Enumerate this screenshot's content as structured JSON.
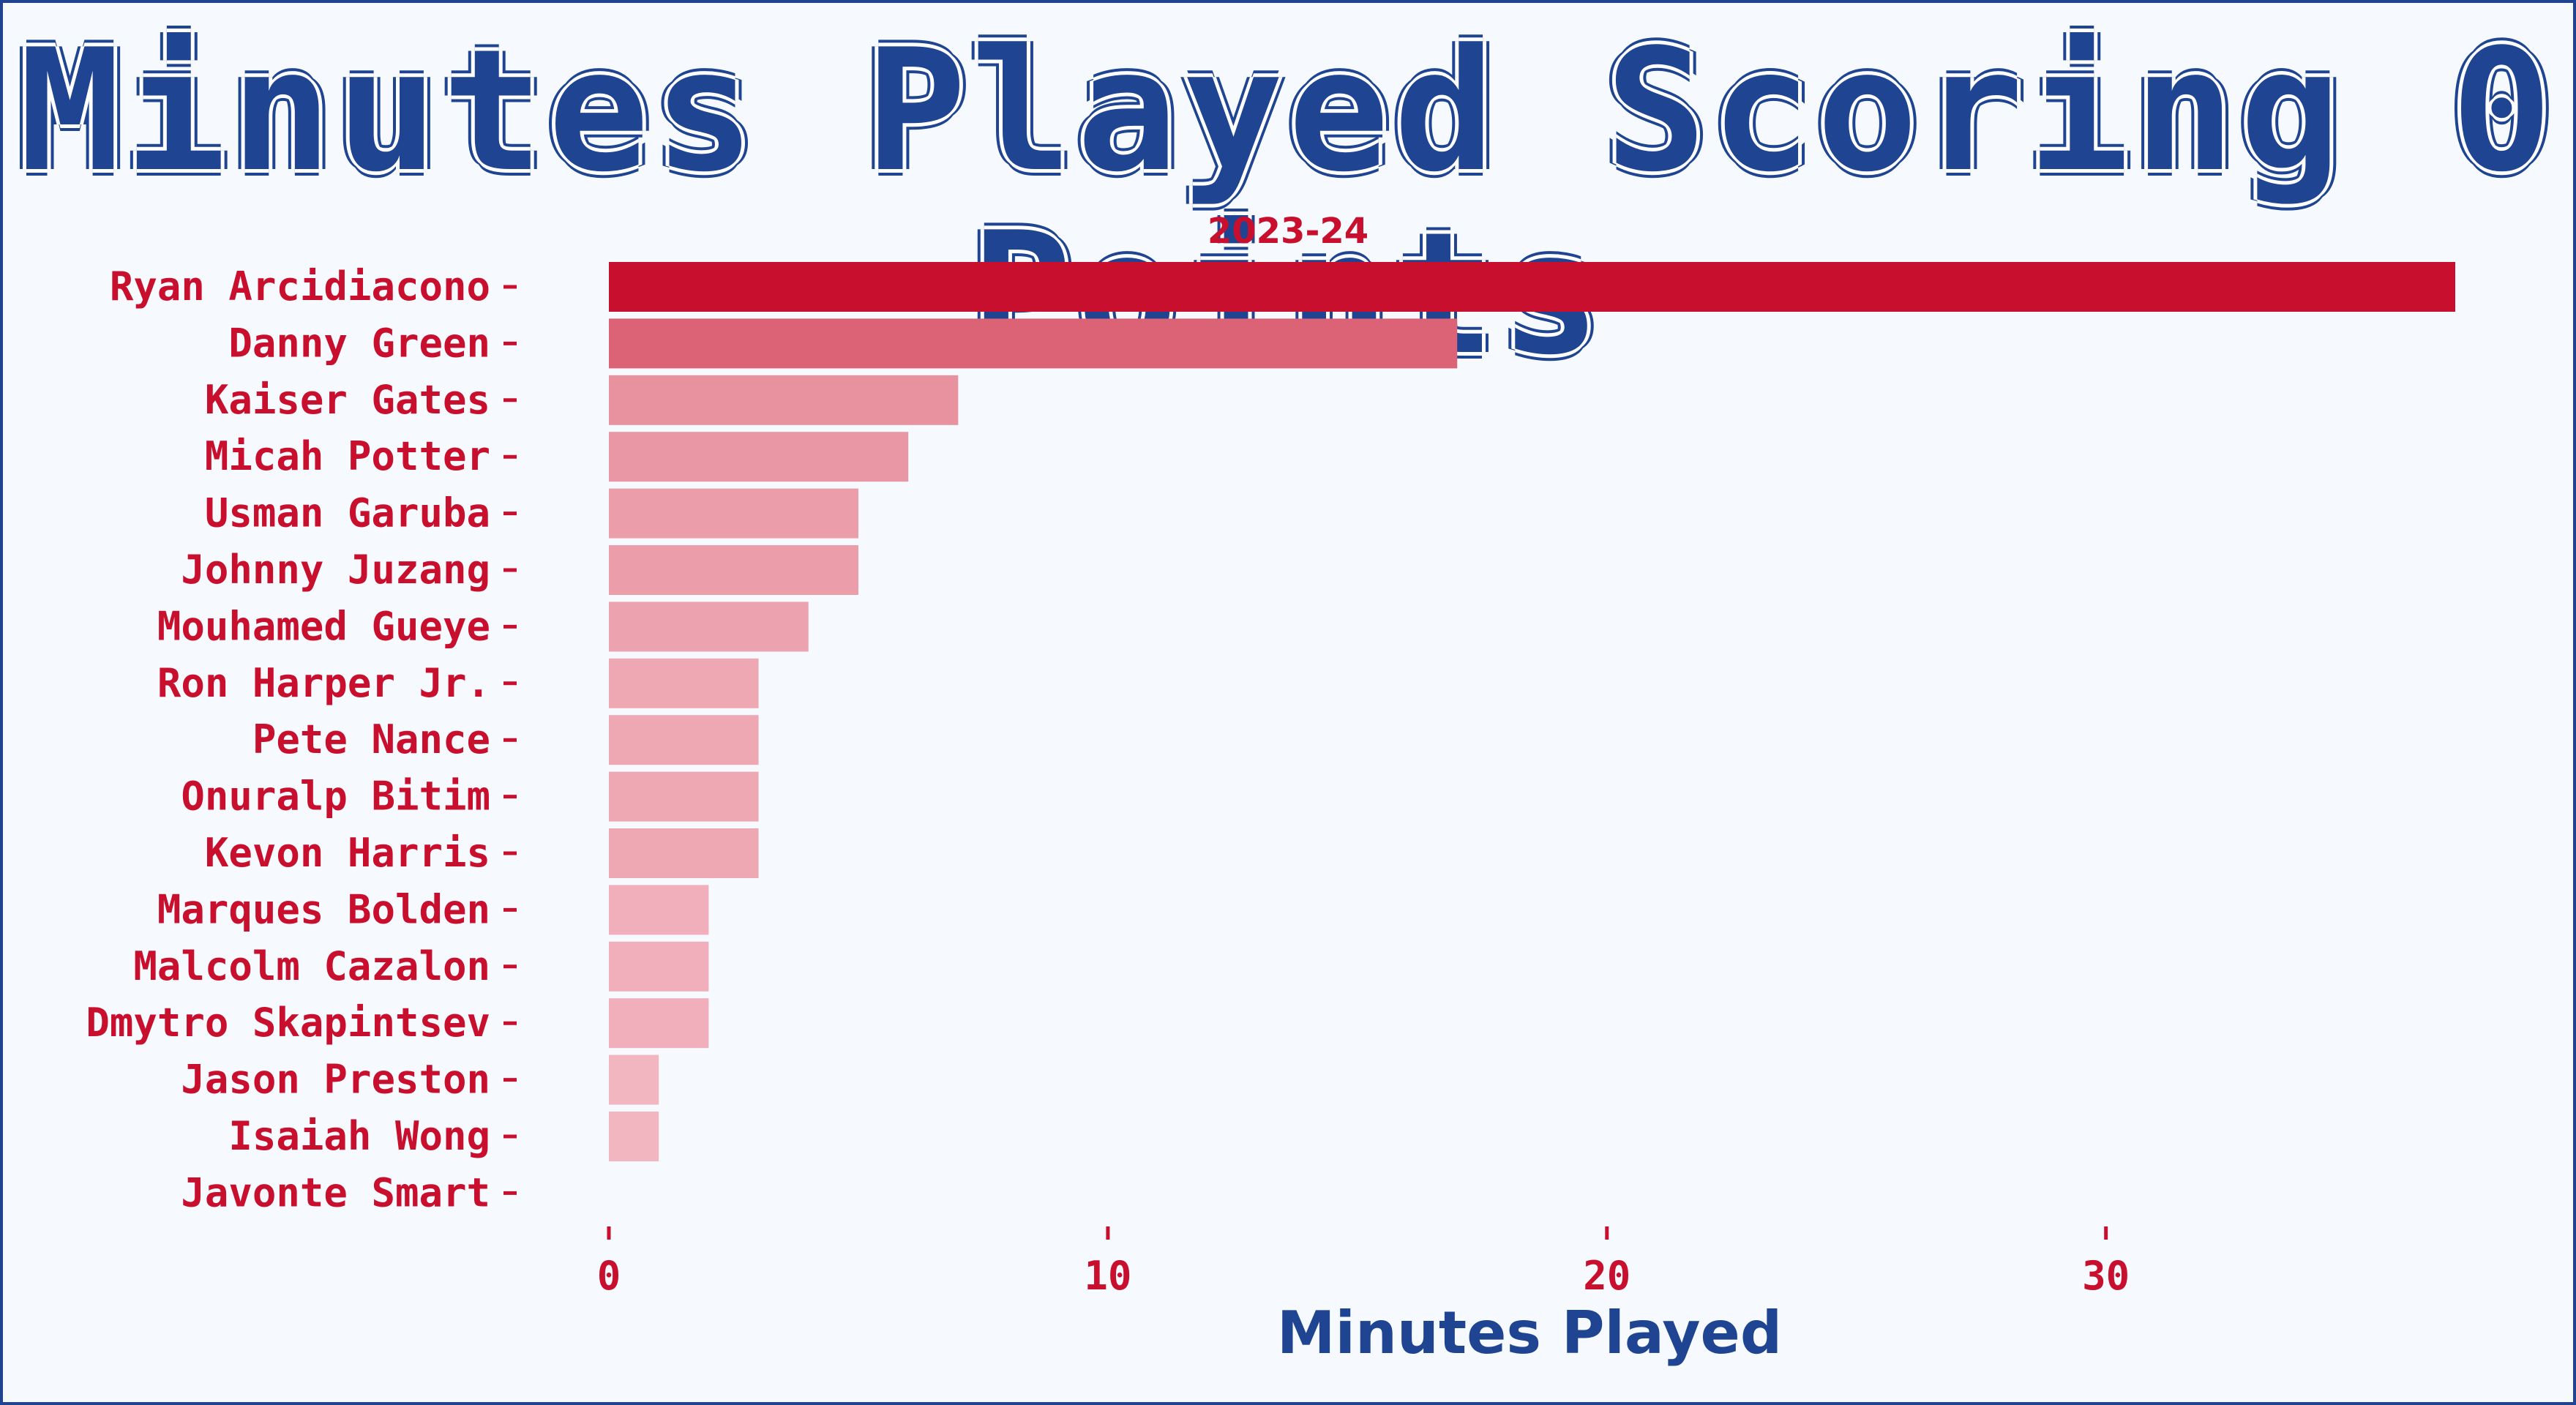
{
  "colors": {
    "background": "#f6fafe",
    "frame": "#1f4491",
    "title": "#1f4491",
    "label": "#c8102e",
    "bar_max": "#c8102e",
    "bar_light": "#f4c0c9"
  },
  "chart_data": {
    "type": "bar",
    "orientation": "horizontal",
    "title": "Minutes Played Scoring 0 Points",
    "subtitle": "2023-24",
    "xlabel": "Minutes Played",
    "ylabel": "",
    "categories": [
      "Ryan Arcidiacono",
      "Danny Green",
      "Kaiser Gates",
      "Micah Potter",
      "Usman Garuba",
      "Johnny Juzang",
      "Mouhamed Gueye",
      "Ron Harper Jr.",
      "Pete Nance",
      "Onuralp Bitim",
      "Kevon Harris",
      "Marques Bolden",
      "Malcolm Cazalon",
      "Dmytro Skapintsev",
      "Jason Preston",
      "Isaiah Wong",
      "Javonte Smart"
    ],
    "values": [
      37,
      17,
      7,
      6,
      5,
      5,
      4,
      3,
      3,
      3,
      3,
      2,
      2,
      2,
      1,
      1,
      0
    ],
    "xlim": [
      0,
      37
    ],
    "xticks": [
      0,
      10,
      20,
      30
    ],
    "xtick_labels": [
      "0",
      "10",
      "20",
      "30"
    ],
    "grid": false,
    "legend": "none"
  }
}
